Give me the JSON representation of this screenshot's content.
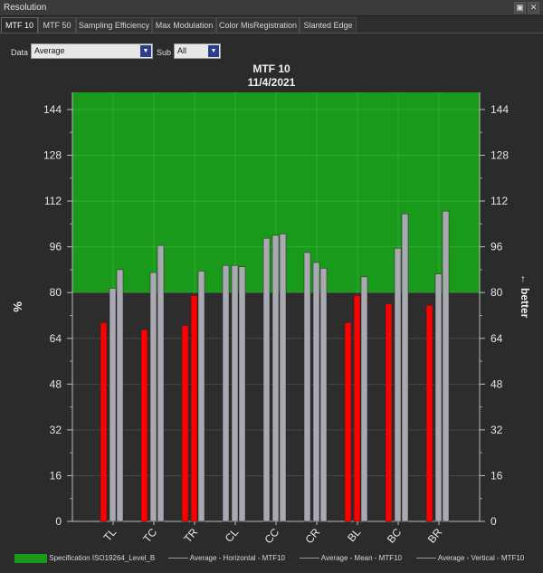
{
  "window": {
    "title": "Resolution"
  },
  "tabs": [
    {
      "label": "MTF 10",
      "active": true
    },
    {
      "label": "MTF 50",
      "active": false
    },
    {
      "label": "Sampling Efficiency",
      "active": false
    },
    {
      "label": "Max Modulation",
      "active": false
    },
    {
      "label": "Color MisRegistration",
      "active": false
    },
    {
      "label": "Slanted Edge",
      "active": false
    }
  ],
  "controls": {
    "data_label": "Data",
    "data_value": "Average",
    "sub_label": "Sub",
    "sub_value": "All"
  },
  "colors": {
    "spec": "#1a9a1a",
    "below": "#ff0000",
    "mean": "#a9a9b1",
    "bg": "#2b2b2b"
  },
  "chart_data": {
    "type": "bar",
    "title": "MTF 10",
    "subtitle": "11/4/2021",
    "ylabel": "%",
    "y2label": "← better",
    "ylim": [
      0,
      150
    ],
    "yticks": [
      0,
      16,
      32,
      48,
      64,
      80,
      96,
      112,
      128,
      144
    ],
    "spec_band": {
      "name": "Specification ISO19264_Level_B",
      "from": 80,
      "to": 150
    },
    "categories": [
      "TL",
      "TC",
      "TR",
      "CL",
      "CC",
      "CR",
      "BL",
      "BC",
      "BR"
    ],
    "series": [
      {
        "name": "Average - Horizontal - MTF10",
        "values": [
          69.5,
          67,
          68.5,
          89.5,
          99,
          94,
          69.5,
          76,
          75.5
        ]
      },
      {
        "name": "Average - Mean - MTF10",
        "values": [
          81.5,
          87,
          79,
          89.5,
          100,
          90.5,
          79,
          95.5,
          86.5
        ]
      },
      {
        "name": "Average - Vertical - MTF10",
        "values": [
          88,
          96.5,
          87.5,
          89,
          100.5,
          88.5,
          85.5,
          107.5,
          108.5
        ]
      }
    ],
    "threshold": 80,
    "legend": "bottom",
    "grid": true
  }
}
